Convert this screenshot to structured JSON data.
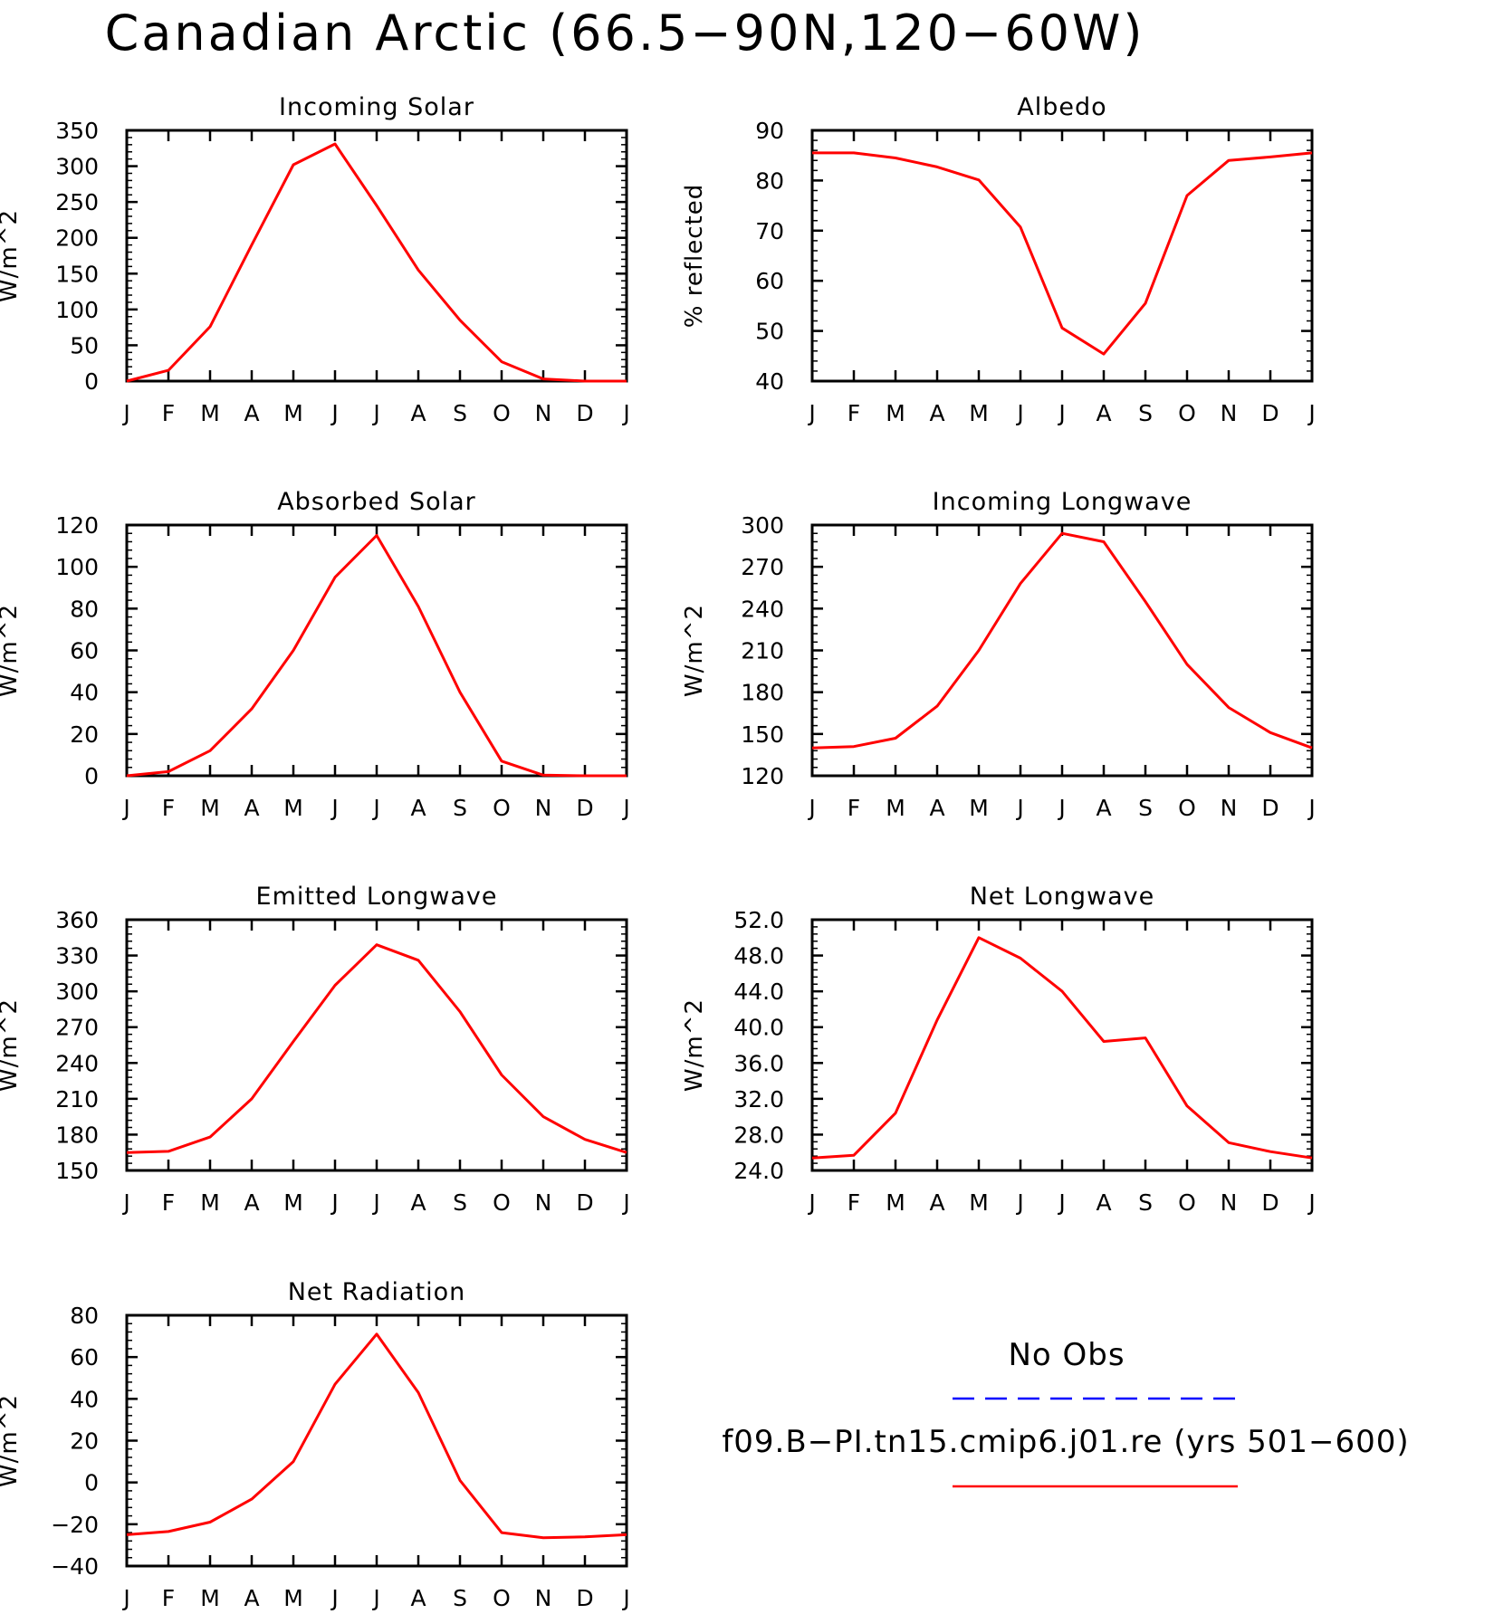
{
  "title": "Canadian Arctic (66.5−90N,120−60W)",
  "months": [
    "J",
    "F",
    "M",
    "A",
    "M",
    "J",
    "J",
    "A",
    "S",
    "O",
    "N",
    "D",
    "J"
  ],
  "series_color": "#ff0000",
  "legend": {
    "obs_label": "No Obs",
    "obs_color": "#0000ff",
    "model_label": "f09.B−PI.tn15.cmip6.j01.re (yrs 501−600)",
    "model_color": "#ff0000"
  },
  "chart_data": [
    {
      "type": "line",
      "title": "Incoming Solar",
      "ylabel": "W/m^2",
      "ylim": [
        0,
        350
      ],
      "yticks": [
        0,
        50,
        100,
        150,
        200,
        250,
        300,
        350
      ],
      "ytick_labels": [
        "0",
        "50",
        "100",
        "150",
        "200",
        "250",
        "300",
        "350"
      ],
      "x": [
        "J",
        "F",
        "M",
        "A",
        "M",
        "J",
        "J",
        "A",
        "S",
        "O",
        "N",
        "D",
        "J"
      ],
      "values": [
        0,
        15,
        76,
        190,
        302,
        331,
        245,
        155,
        85,
        27,
        3,
        0,
        0
      ]
    },
    {
      "type": "line",
      "title": "Albedo",
      "ylabel": "% reflected",
      "ylim": [
        40,
        90
      ],
      "yticks": [
        40,
        50,
        60,
        70,
        80,
        90
      ],
      "ytick_labels": [
        "40",
        "50",
        "60",
        "70",
        "80",
        "90"
      ],
      "x": [
        "J",
        "F",
        "M",
        "A",
        "M",
        "J",
        "J",
        "A",
        "S",
        "O",
        "N",
        "D",
        "J"
      ],
      "values": [
        85.5,
        85.5,
        84.5,
        82.7,
        80.1,
        70.7,
        50.6,
        45.4,
        55.5,
        77,
        84,
        84.7,
        85.5
      ]
    },
    {
      "type": "line",
      "title": "Absorbed Solar",
      "ylabel": "W/m^2",
      "ylim": [
        0,
        120
      ],
      "yticks": [
        0,
        20,
        40,
        60,
        80,
        100,
        120
      ],
      "ytick_labels": [
        "0",
        "20",
        "40",
        "60",
        "80",
        "100",
        "120"
      ],
      "x": [
        "J",
        "F",
        "M",
        "A",
        "M",
        "J",
        "J",
        "A",
        "S",
        "O",
        "N",
        "D",
        "J"
      ],
      "values": [
        0,
        2,
        12,
        32,
        60,
        95,
        115,
        81,
        40,
        7,
        0.3,
        0,
        0
      ]
    },
    {
      "type": "line",
      "title": "Incoming Longwave",
      "ylabel": "W/m^2",
      "ylim": [
        120,
        300
      ],
      "yticks": [
        120,
        150,
        180,
        210,
        240,
        270,
        300
      ],
      "ytick_labels": [
        "120",
        "150",
        "180",
        "210",
        "240",
        "270",
        "300"
      ],
      "x": [
        "J",
        "F",
        "M",
        "A",
        "M",
        "J",
        "J",
        "A",
        "S",
        "O",
        "N",
        "D",
        "J"
      ],
      "values": [
        140,
        141,
        147,
        170,
        210,
        258,
        294,
        288,
        245,
        200,
        169,
        151,
        140
      ]
    },
    {
      "type": "line",
      "title": "Emitted Longwave",
      "ylabel": "W/m^2",
      "ylim": [
        150,
        360
      ],
      "yticks": [
        150,
        180,
        210,
        240,
        270,
        300,
        330,
        360
      ],
      "ytick_labels": [
        "150",
        "180",
        "210",
        "240",
        "270",
        "300",
        "330",
        "360"
      ],
      "x": [
        "J",
        "F",
        "M",
        "A",
        "M",
        "J",
        "J",
        "A",
        "S",
        "O",
        "N",
        "D",
        "J"
      ],
      "values": [
        165,
        166,
        178,
        210,
        258,
        305,
        339,
        326,
        283,
        230,
        195,
        176,
        165
      ]
    },
    {
      "type": "line",
      "title": "Net Longwave",
      "ylabel": "W/m^2",
      "ylim": [
        24,
        52
      ],
      "yticks": [
        24,
        28,
        32,
        36,
        40,
        44,
        48,
        52
      ],
      "ytick_labels": [
        "24.0",
        "28.0",
        "32.0",
        "36.0",
        "40.0",
        "44.0",
        "48.0",
        "52.0"
      ],
      "x": [
        "J",
        "F",
        "M",
        "A",
        "M",
        "J",
        "J",
        "A",
        "S",
        "O",
        "N",
        "D",
        "J"
      ],
      "values": [
        25.4,
        25.7,
        30.4,
        40.8,
        50.0,
        47.7,
        44.0,
        38.4,
        38.8,
        31.2,
        27.1,
        26.1,
        25.4
      ]
    },
    {
      "type": "line",
      "title": "Net Radiation",
      "ylabel": "W/m^2",
      "ylim": [
        -40,
        80
      ],
      "yticks": [
        -40,
        -20,
        0,
        20,
        40,
        60,
        80
      ],
      "ytick_labels": [
        "−40",
        "−20",
        "0",
        "20",
        "40",
        "60",
        "80"
      ],
      "x": [
        "J",
        "F",
        "M",
        "A",
        "M",
        "J",
        "J",
        "A",
        "S",
        "O",
        "N",
        "D",
        "J"
      ],
      "values": [
        -25,
        -23.5,
        -19,
        -8,
        10,
        47,
        71,
        43,
        1,
        -24,
        -26.5,
        -26,
        -25
      ]
    }
  ]
}
